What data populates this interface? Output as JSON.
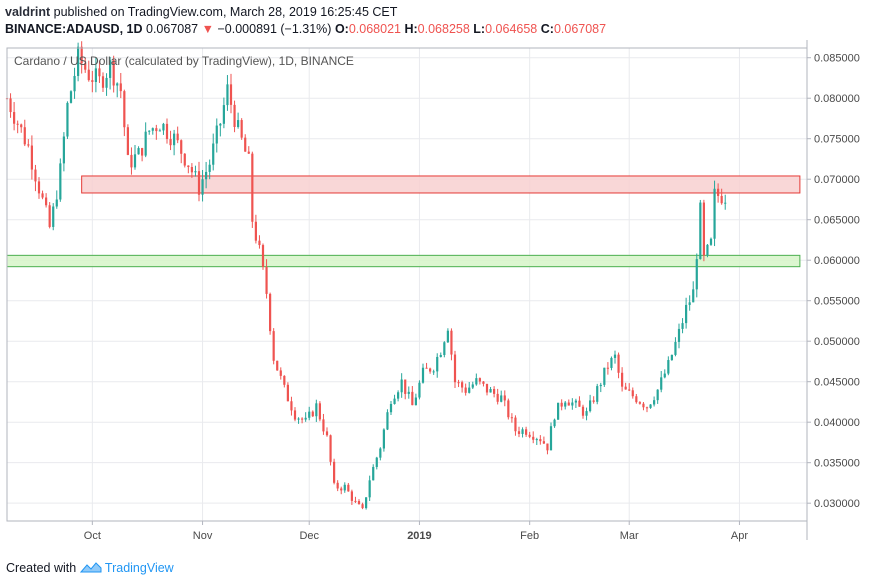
{
  "header": {
    "user": "valdrint",
    "published_text": "published on TradingView.com, March 28, 2019 16:25:45 CET",
    "symbol": "BINANCE:ADAUSD, 1D",
    "last": "0.067087",
    "change_arrow": "▼",
    "change": "−0.000891 (−1.31%)",
    "o_label": "O:",
    "o_value": "0.068021",
    "h_label": "H:",
    "h_value": "0.068258",
    "l_label": "L:",
    "l_value": "0.064658",
    "c_label": "C:",
    "c_value": "0.067087"
  },
  "footer": {
    "created_with": "Created with",
    "brand": "TradingView",
    "logo_icon": "tradingview-logo-icon"
  },
  "colors": {
    "up": "#26a69a",
    "down": "#ef5350",
    "resistance_fill": "#f8d0d0",
    "resistance_stroke": "#e53935",
    "support_fill": "#d6f5c8",
    "support_stroke": "#4caf50",
    "grid": "#e9eaee",
    "axis": "#b2b5be"
  },
  "chart_data": {
    "type": "candlestick",
    "title": "Cardano / US Dollar (calculated by TradingView), 1D, BINANCE",
    "xlabel": "",
    "ylabel": "",
    "x_range": [
      "2018-09-07",
      "2019-04-20"
    ],
    "ylim": [
      0.0278,
      0.0862
    ],
    "y_ticks": [
      "0.030000",
      "0.035000",
      "0.040000",
      "0.045000",
      "0.050000",
      "0.055000",
      "0.060000",
      "0.065000",
      "0.070000",
      "0.075000",
      "0.080000",
      "0.085000"
    ],
    "x_ticks": [
      {
        "date": "2018-10-01",
        "label": "Oct"
      },
      {
        "date": "2018-11-01",
        "label": "Nov"
      },
      {
        "date": "2018-12-01",
        "label": "Dec"
      },
      {
        "date": "2019-01-01",
        "label": "2019"
      },
      {
        "date": "2019-02-01",
        "label": "Feb"
      },
      {
        "date": "2019-03-01",
        "label": "Mar"
      },
      {
        "date": "2019-04-01",
        "label": "Apr"
      }
    ],
    "grid": true,
    "zones": [
      {
        "name": "resistance",
        "from": "2018-09-28",
        "to": "2019-04-18",
        "low": 0.0683,
        "high": 0.0704
      },
      {
        "name": "support",
        "from": "2018-09-07",
        "to": "2019-04-18",
        "low": 0.0592,
        "high": 0.0606
      }
    ],
    "close_path": [
      {
        "date": "2018-09-07",
        "close": 0.08
      },
      {
        "date": "2018-09-10",
        "close": 0.077
      },
      {
        "date": "2018-09-13",
        "close": 0.074
      },
      {
        "date": "2018-09-16",
        "close": 0.069
      },
      {
        "date": "2018-09-19",
        "close": 0.064
      },
      {
        "date": "2018-09-20",
        "close": 0.066
      },
      {
        "date": "2018-09-22",
        "close": 0.071
      },
      {
        "date": "2018-09-24",
        "close": 0.079
      },
      {
        "date": "2018-09-27",
        "close": 0.085
      },
      {
        "date": "2018-09-30",
        "close": 0.083
      },
      {
        "date": "2018-10-03",
        "close": 0.082
      },
      {
        "date": "2018-10-06",
        "close": 0.084
      },
      {
        "date": "2018-10-09",
        "close": 0.081
      },
      {
        "date": "2018-10-11",
        "close": 0.072
      },
      {
        "date": "2018-10-14",
        "close": 0.073
      },
      {
        "date": "2018-10-17",
        "close": 0.076
      },
      {
        "date": "2018-10-20",
        "close": 0.077
      },
      {
        "date": "2018-10-24",
        "close": 0.075
      },
      {
        "date": "2018-10-28",
        "close": 0.072
      },
      {
        "date": "2018-10-31",
        "close": 0.069
      },
      {
        "date": "2018-11-03",
        "close": 0.072
      },
      {
        "date": "2018-11-06",
        "close": 0.077
      },
      {
        "date": "2018-11-08",
        "close": 0.081
      },
      {
        "date": "2018-11-11",
        "close": 0.076
      },
      {
        "date": "2018-11-14",
        "close": 0.072
      },
      {
        "date": "2018-11-15",
        "close": 0.065
      },
      {
        "date": "2018-11-17",
        "close": 0.061
      },
      {
        "date": "2018-11-19",
        "close": 0.056
      },
      {
        "date": "2018-11-21",
        "close": 0.048
      },
      {
        "date": "2018-11-24",
        "close": 0.044
      },
      {
        "date": "2018-11-27",
        "close": 0.041
      },
      {
        "date": "2018-11-30",
        "close": 0.04
      },
      {
        "date": "2018-12-03",
        "close": 0.042
      },
      {
        "date": "2018-12-06",
        "close": 0.038
      },
      {
        "date": "2018-12-08",
        "close": 0.032
      },
      {
        "date": "2018-12-11",
        "close": 0.032
      },
      {
        "date": "2018-12-14",
        "close": 0.03
      },
      {
        "date": "2018-12-16",
        "close": 0.029
      },
      {
        "date": "2018-12-18",
        "close": 0.033
      },
      {
        "date": "2018-12-21",
        "close": 0.037
      },
      {
        "date": "2018-12-24",
        "close": 0.043
      },
      {
        "date": "2018-12-27",
        "close": 0.045
      },
      {
        "date": "2018-12-30",
        "close": 0.042
      },
      {
        "date": "2019-01-02",
        "close": 0.046
      },
      {
        "date": "2019-01-05",
        "close": 0.047
      },
      {
        "date": "2019-01-07",
        "close": 0.049
      },
      {
        "date": "2019-01-09",
        "close": 0.052
      },
      {
        "date": "2019-01-11",
        "close": 0.045
      },
      {
        "date": "2019-01-14",
        "close": 0.044
      },
      {
        "date": "2019-01-17",
        "close": 0.045
      },
      {
        "date": "2019-01-20",
        "close": 0.044
      },
      {
        "date": "2019-01-24",
        "close": 0.043
      },
      {
        "date": "2019-01-28",
        "close": 0.039
      },
      {
        "date": "2019-01-31",
        "close": 0.039
      },
      {
        "date": "2019-02-04",
        "close": 0.038
      },
      {
        "date": "2019-02-06",
        "close": 0.037
      },
      {
        "date": "2019-02-08",
        "close": 0.041
      },
      {
        "date": "2019-02-11",
        "close": 0.043
      },
      {
        "date": "2019-02-14",
        "close": 0.042
      },
      {
        "date": "2019-02-17",
        "close": 0.041
      },
      {
        "date": "2019-02-20",
        "close": 0.044
      },
      {
        "date": "2019-02-23",
        "close": 0.047
      },
      {
        "date": "2019-02-25",
        "close": 0.048
      },
      {
        "date": "2019-02-27",
        "close": 0.044
      },
      {
        "date": "2019-03-03",
        "close": 0.043
      },
      {
        "date": "2019-03-06",
        "close": 0.042
      },
      {
        "date": "2019-03-09",
        "close": 0.044
      },
      {
        "date": "2019-03-12",
        "close": 0.047
      },
      {
        "date": "2019-03-15",
        "close": 0.051
      },
      {
        "date": "2019-03-17",
        "close": 0.054
      },
      {
        "date": "2019-03-19",
        "close": 0.056
      },
      {
        "date": "2019-03-20",
        "close": 0.061
      },
      {
        "date": "2019-03-21",
        "close": 0.066
      },
      {
        "date": "2019-03-22",
        "close": 0.06
      },
      {
        "date": "2019-03-24",
        "close": 0.062
      },
      {
        "date": "2019-03-25",
        "close": 0.068
      },
      {
        "date": "2019-03-27",
        "close": 0.068
      },
      {
        "date": "2019-03-28",
        "close": 0.0671
      }
    ]
  }
}
